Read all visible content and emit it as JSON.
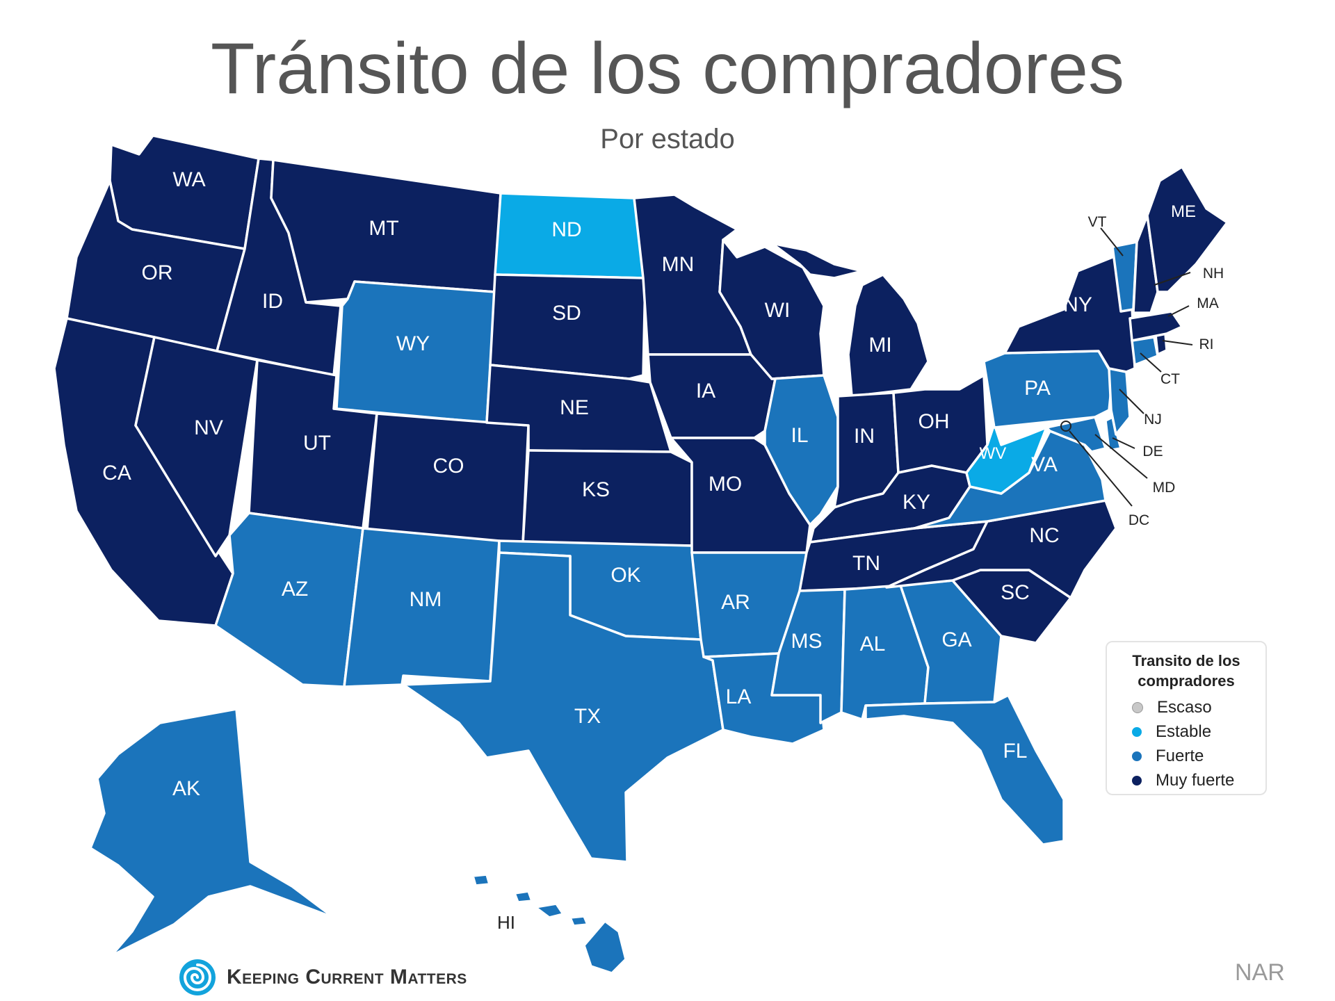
{
  "title": "Tránsito de los compradores",
  "subtitle": "Por estado",
  "colors": {
    "Escaso": "#c8c8c8",
    "Estable": "#0aaae6",
    "Fuerte": "#1b74bb",
    "Muy fuerte": "#0c2160"
  },
  "legend": {
    "title_line1": "Transito de los",
    "title_line2": "compradores",
    "items": [
      "Escaso",
      "Estable",
      "Fuerte",
      "Muy fuerte"
    ]
  },
  "states": {
    "WA": "Muy fuerte",
    "OR": "Muy fuerte",
    "CA": "Muy fuerte",
    "ID": "Muy fuerte",
    "NV": "Muy fuerte",
    "MT": "Muy fuerte",
    "WY": "Fuerte",
    "UT": "Muy fuerte",
    "CO": "Muy fuerte",
    "AZ": "Fuerte",
    "NM": "Fuerte",
    "ND": "Estable",
    "SD": "Muy fuerte",
    "NE": "Muy fuerte",
    "KS": "Muy fuerte",
    "OK": "Fuerte",
    "TX": "Fuerte",
    "MN": "Muy fuerte",
    "IA": "Muy fuerte",
    "MO": "Muy fuerte",
    "AR": "Fuerte",
    "LA": "Fuerte",
    "WI": "Muy fuerte",
    "IL": "Fuerte",
    "MI": "Muy fuerte",
    "IN": "Muy fuerte",
    "OH": "Muy fuerte",
    "KY": "Muy fuerte",
    "TN": "Muy fuerte",
    "MS": "Fuerte",
    "AL": "Fuerte",
    "GA": "Fuerte",
    "FL": "Fuerte",
    "SC": "Muy fuerte",
    "NC": "Muy fuerte",
    "VA": "Fuerte",
    "WV": "Estable",
    "PA": "Fuerte",
    "NY": "Muy fuerte",
    "VT": "Fuerte",
    "NH": "Muy fuerte",
    "ME": "Muy fuerte",
    "MA": "Muy fuerte",
    "RI": "Muy fuerte",
    "CT": "Fuerte",
    "NJ": "Fuerte",
    "DE": "Fuerte",
    "MD": "Fuerte",
    "DC": "Fuerte",
    "AK": "Fuerte",
    "HI": "Fuerte"
  },
  "source": "NAR",
  "logo_text": "Keeping Current Matters"
}
